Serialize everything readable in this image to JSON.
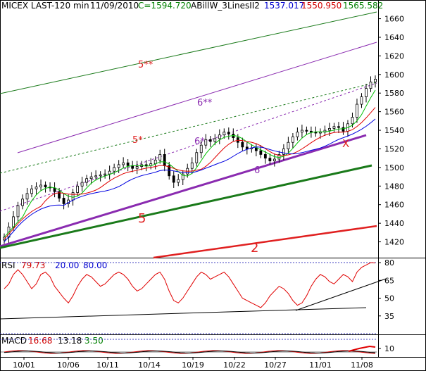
{
  "header": {
    "symbol": "MICEX LAST-120 min",
    "date": "11/09/2010",
    "close": "C=1594.720",
    "indicator": "ABillW_3LinesII2",
    "val1": "1537.017",
    "val2": "1550.950",
    "val3": "1565.582"
  },
  "colors": {
    "background": "#ffffff",
    "candles": "#000000",
    "green_ma": "#00c000",
    "red_ma": "#e00000",
    "blue_ma": "#0000e0",
    "channel_green": "#1a7a1a",
    "channel_purple": "#8a2bb0",
    "trend_red": "#e02020",
    "axis_text": "#000000"
  },
  "chart_data": [
    {
      "type": "candlestick",
      "title": "MICEX LAST-120 min",
      "x_ticks": [
        "10/01",
        "10/06",
        "10/11",
        "10/14",
        "10/19",
        "10/22",
        "10/27",
        "11/01",
        "11/08"
      ],
      "y_ticks": [
        1420,
        1440,
        1460,
        1480,
        1500,
        1520,
        1540,
        1560,
        1580,
        1600,
        1620,
        1640,
        1660
      ],
      "ylim": [
        1403,
        1668
      ],
      "close_path": [
        1425,
        1436,
        1447,
        1459,
        1466,
        1472,
        1477,
        1479,
        1481,
        1479,
        1478,
        1474,
        1467,
        1461,
        1465,
        1473,
        1480,
        1484,
        1488,
        1490,
        1491,
        1492,
        1493,
        1496,
        1500,
        1503,
        1505,
        1502,
        1499,
        1501,
        1503,
        1502,
        1504,
        1508,
        1514,
        1502,
        1491,
        1484,
        1487,
        1493,
        1499,
        1505,
        1516,
        1524,
        1530,
        1528,
        1531,
        1535,
        1538,
        1536,
        1532,
        1527,
        1522,
        1520,
        1521,
        1518,
        1514,
        1510,
        1507,
        1509,
        1514,
        1520,
        1527,
        1533,
        1538,
        1540,
        1539,
        1538,
        1537,
        1538,
        1540,
        1542,
        1544,
        1543,
        1539,
        1547,
        1554,
        1568,
        1576,
        1585,
        1592,
        1595
      ],
      "indicator_labels": [
        "5**",
        "6**",
        "5*",
        "6*",
        "6",
        "5",
        "2",
        "X"
      ],
      "moving_averages": [
        {
          "color": "green",
          "values_at_right": 1565.582
        },
        {
          "color": "red",
          "values_at_right": 1550.95
        },
        {
          "color": "blue",
          "values_at_right": 1537.017
        }
      ]
    },
    {
      "type": "line",
      "title": "RSI",
      "label_values": [
        "79.73",
        "20.00",
        "80.00"
      ],
      "y_ticks": [
        35,
        50,
        65,
        80
      ],
      "ylim": [
        20,
        83
      ],
      "reference_lines": [
        20,
        80
      ],
      "values": [
        58,
        62,
        70,
        74,
        70,
        64,
        58,
        62,
        70,
        72,
        68,
        60,
        55,
        50,
        46,
        52,
        60,
        66,
        70,
        68,
        64,
        60,
        62,
        66,
        70,
        72,
        70,
        66,
        60,
        56,
        58,
        62,
        66,
        70,
        72,
        66,
        56,
        48,
        46,
        50,
        56,
        62,
        68,
        72,
        70,
        66,
        68,
        70,
        72,
        68,
        62,
        56,
        50,
        48,
        46,
        44,
        42,
        46,
        52,
        56,
        60,
        58,
        54,
        48,
        44,
        46,
        52,
        60,
        66,
        70,
        68,
        64,
        62,
        66,
        70,
        68,
        64,
        72,
        76,
        78,
        80,
        79.73
      ]
    },
    {
      "type": "bar",
      "title": "MACD",
      "label_values": [
        "16.68",
        "13.18",
        "3.50"
      ],
      "y_ticks": [
        10
      ],
      "ylim": [
        0,
        20
      ]
    }
  ]
}
